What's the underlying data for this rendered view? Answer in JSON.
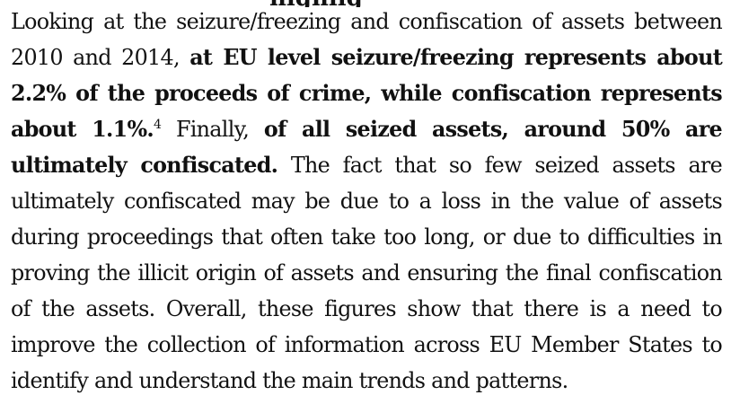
{
  "page": {
    "clipped_heading_fragment": "highlig"
  },
  "paragraph": {
    "seg1": "Looking at the seizure/freezing and confiscation of assets between 2010 and 2014, ",
    "seg2_bold": "at EU level seizure/freezing represents about 2.2% of the proceeds of crime, while confiscation represents about 1.1%.",
    "footnote": "4",
    "seg3": " Finally, ",
    "seg4_bold": "of all seized assets, around 50% are ultimately confiscated.",
    "seg5": " The fact that so few seized assets are ultimately confiscated may be due to a loss in the value of assets during proceedings that often take too long, or due to difficulties in proving the illicit origin of assets and ensuring the final confiscation of the assets. Overall, these figures show that there is a need to improve the collection of information across EU Member States to identify and understand the main trends and patterns."
  }
}
